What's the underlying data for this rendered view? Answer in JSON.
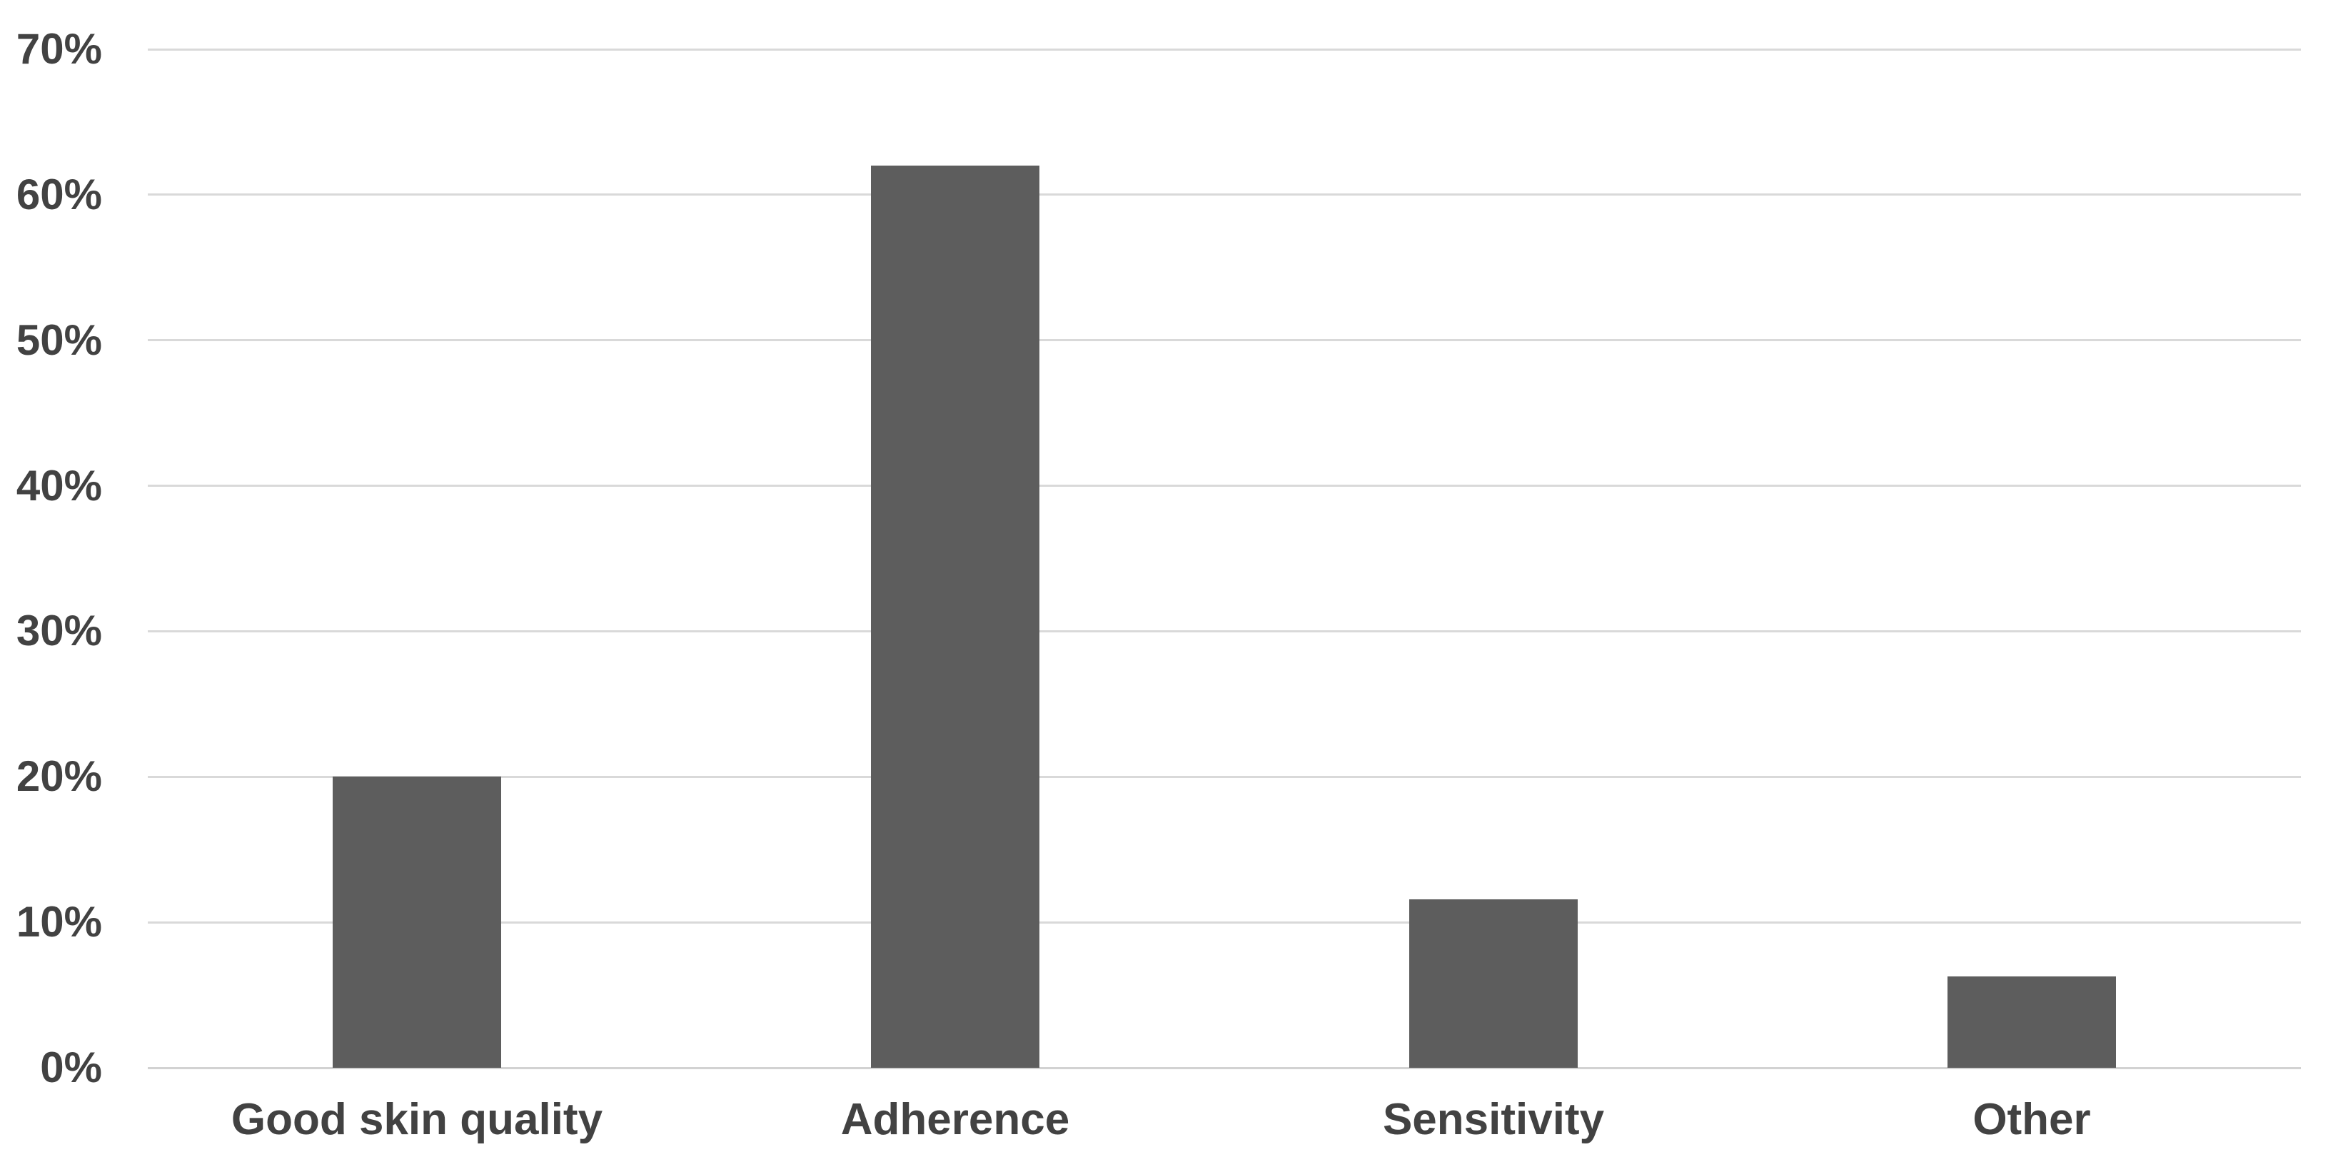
{
  "chart_data": {
    "type": "bar",
    "title": "",
    "xlabel": "",
    "ylabel": "",
    "categories": [
      "Good skin quality",
      "Adherence",
      "Sensitivity",
      "Other"
    ],
    "values": [
      20,
      62,
      11.6,
      6.3
    ],
    "value_unit": "percent",
    "ylim": [
      0,
      70
    ],
    "yticks": [
      0,
      10,
      20,
      30,
      40,
      50,
      60,
      70
    ],
    "ytick_labels": [
      "0%",
      "10%",
      "20%",
      "30%",
      "40%",
      "50%",
      "60%",
      "70%"
    ],
    "grid": true,
    "legend": false,
    "colors": {
      "bar": "#5d5d5d",
      "gridline": "#d9d9d9",
      "axis_line": "#d2d2d2",
      "tick_label": "#424242",
      "category_label": "#424242",
      "background": "#ffffff"
    }
  }
}
